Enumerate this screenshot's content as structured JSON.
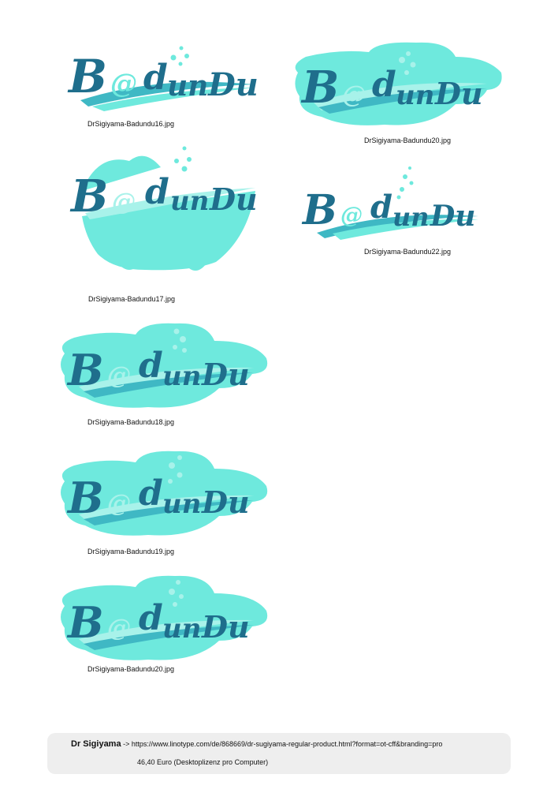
{
  "colors": {
    "teal_dark": "#1f6e8c",
    "teal_mid": "#3fb8c4",
    "aqua": "#6ee9dd",
    "aqua_light": "#a8f2ea",
    "footer_bg": "#eeeeee"
  },
  "logo_wordmark": "Badundu",
  "logos": [
    {
      "caption": "DrSigiyama-Badundu16.jpg",
      "variant": "plain"
    },
    {
      "caption": "DrSigiyama-Badundu20.jpg",
      "variant": "cloud"
    },
    {
      "caption": "DrSigiyama-Badundu17.jpg",
      "variant": "bathtub"
    },
    {
      "caption": "DrSigiyama-Badundu22.jpg",
      "variant": "plain"
    },
    {
      "caption": "DrSigiyama-Badundu18.jpg",
      "variant": "cloud"
    },
    {
      "caption": "DrSigiyama-Badundu19.jpg",
      "variant": "cloud"
    },
    {
      "caption": "DrSigiyama-Badundu20.jpg",
      "variant": "cloud"
    }
  ],
  "footer": {
    "font_name": "Dr Sigiyama",
    "arrow": "->",
    "url": "https://www.linotype.com/de/868669/dr-sugiyama-regular-product.html?format=ot-cff&branding=pro",
    "price": "46,40 Euro (Desktoplizenz pro Computer)"
  }
}
